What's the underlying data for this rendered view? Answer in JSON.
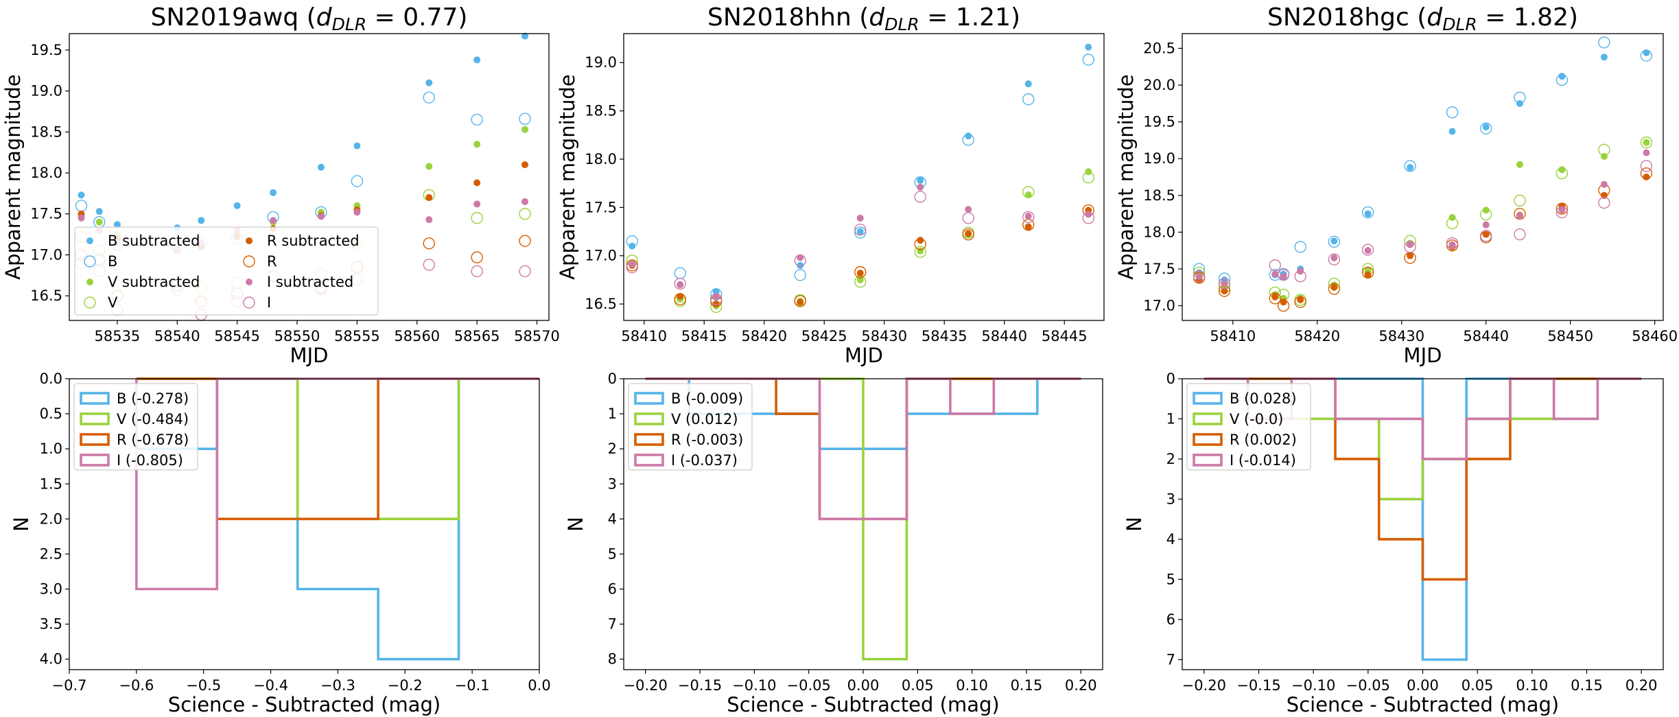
{
  "colors": {
    "B": "#56b4e9",
    "V": "#99d33c",
    "R": "#d55e00",
    "I": "#cc79a7"
  },
  "chart_data": [
    {
      "type": "scatter",
      "title_main": "SN2019awq",
      "title_dlr": "0.77",
      "xlabel": "MJD",
      "ylabel": "Apparent magnitude",
      "xlim": [
        58531,
        58571
      ],
      "ylim": [
        19.7,
        16.2
      ],
      "y_inverted": true,
      "xticks": [
        58535,
        58540,
        58545,
        58550,
        58555,
        58560,
        58565,
        58570
      ],
      "yticks": [
        16.5,
        17.0,
        17.5,
        18.0,
        18.5,
        19.0,
        19.5
      ],
      "legend_loc": "lower-left",
      "legend": [
        {
          "label": "B subtracted",
          "band": "B",
          "kind": "sub"
        },
        {
          "label": "R subtracted",
          "band": "R",
          "kind": "sub"
        },
        {
          "label": "B",
          "band": "B",
          "kind": "sci"
        },
        {
          "label": "R",
          "band": "R",
          "kind": "sci"
        },
        {
          "label": "V subtracted",
          "band": "V",
          "kind": "sub"
        },
        {
          "label": "I subtracted",
          "band": "I",
          "kind": "sub"
        },
        {
          "label": "V",
          "band": "V",
          "kind": "sci"
        },
        {
          "label": "I",
          "band": "I",
          "kind": "sci"
        }
      ],
      "x": [
        58532,
        58533.5,
        58535,
        58540,
        58542,
        58545,
        58548,
        58552,
        58555,
        58561,
        58565,
        58569
      ],
      "series": [
        {
          "band": "B",
          "kind": "sub",
          "values": [
            17.73,
            17.53,
            17.37,
            17.33,
            17.42,
            17.6,
            17.76,
            18.07,
            18.33,
            19.1,
            19.38,
            19.67
          ]
        },
        {
          "band": "B",
          "kind": "sci",
          "values": [
            17.6,
            17.4,
            17.12,
            17.1,
            17.15,
            17.2,
            17.46,
            17.52,
            17.9,
            18.92,
            18.65,
            18.66
          ]
        },
        {
          "band": "V",
          "kind": "sub",
          "values": [
            17.47,
            17.4,
            17.25,
            17.08,
            17.13,
            17.25,
            17.4,
            17.52,
            17.6,
            18.08,
            18.35,
            18.53
          ]
        },
        {
          "band": "V",
          "kind": "sci",
          "values": [
            17.22,
            17.05,
            16.62,
            16.7,
            16.6,
            16.66,
            16.92,
            16.77,
            17.12,
            17.73,
            17.45,
            17.5
          ]
        },
        {
          "band": "R",
          "kind": "sub",
          "values": [
            17.5,
            17.3,
            17.2,
            17.05,
            17.1,
            17.22,
            17.32,
            17.48,
            17.55,
            17.7,
            17.88,
            18.1
          ]
        },
        {
          "band": "R",
          "kind": "sci",
          "values": [
            17.0,
            16.94,
            16.5,
            16.63,
            16.43,
            16.53,
            16.74,
            16.58,
            16.85,
            17.14,
            16.97,
            17.17
          ]
        },
        {
          "band": "I",
          "kind": "sub",
          "values": [
            17.45,
            17.3,
            17.15,
            17.05,
            17.15,
            17.3,
            17.42,
            17.47,
            17.52,
            17.43,
            17.62,
            17.65
          ]
        },
        {
          "band": "I",
          "kind": "sci",
          "values": [
            16.9,
            16.8,
            16.33,
            16.57,
            16.27,
            16.43,
            16.74,
            16.6,
            16.7,
            16.88,
            16.8,
            16.8
          ]
        }
      ]
    },
    {
      "type": "scatter",
      "title_main": "SN2018hhn",
      "title_dlr": "1.21",
      "xlabel": "MJD",
      "ylabel": "Apparent magnitude",
      "xlim": [
        58408.3,
        58448.3
      ],
      "ylim": [
        19.3,
        16.33
      ],
      "y_inverted": true,
      "xticks": [
        58410,
        58415,
        58420,
        58425,
        58430,
        58435,
        58440,
        58445
      ],
      "yticks": [
        16.5,
        17.0,
        17.5,
        18.0,
        18.5,
        19.0
      ],
      "x": [
        58409,
        58413,
        58416,
        58423,
        58428,
        58433,
        58437,
        58442,
        58447
      ],
      "series": [
        {
          "band": "B",
          "kind": "sub",
          "values": [
            17.1,
            16.7,
            16.63,
            16.9,
            17.25,
            17.78,
            18.24,
            18.78,
            19.16
          ]
        },
        {
          "band": "B",
          "kind": "sci",
          "values": [
            17.15,
            16.82,
            16.6,
            16.8,
            17.24,
            17.76,
            18.2,
            18.62,
            19.03
          ]
        },
        {
          "band": "V",
          "kind": "sub",
          "values": [
            16.92,
            16.55,
            16.48,
            16.53,
            16.75,
            17.05,
            17.22,
            17.63,
            17.87
          ]
        },
        {
          "band": "V",
          "kind": "sci",
          "values": [
            16.95,
            16.53,
            16.47,
            16.54,
            16.73,
            17.04,
            17.24,
            17.66,
            17.81
          ]
        },
        {
          "band": "R",
          "kind": "sub",
          "values": [
            16.9,
            16.58,
            16.5,
            16.52,
            16.82,
            17.16,
            17.23,
            17.3,
            17.47
          ]
        },
        {
          "band": "R",
          "kind": "sci",
          "values": [
            16.9,
            16.55,
            16.53,
            16.53,
            16.83,
            17.12,
            17.22,
            17.32,
            17.47
          ]
        },
        {
          "band": "I",
          "kind": "sub",
          "values": [
            16.91,
            16.7,
            16.57,
            16.98,
            17.39,
            17.71,
            17.48,
            17.41,
            17.43
          ]
        },
        {
          "band": "I",
          "kind": "sci",
          "values": [
            16.88,
            16.71,
            16.55,
            16.95,
            17.27,
            17.61,
            17.39,
            17.4,
            17.39
          ]
        }
      ]
    },
    {
      "type": "scatter",
      "title_main": "SN2018hgc",
      "title_dlr": "1.82",
      "xlabel": "MJD",
      "ylabel": "Apparent magnitude",
      "xlim": [
        58404,
        58461
      ],
      "ylim": [
        20.7,
        16.8
      ],
      "y_inverted": true,
      "xticks": [
        58410,
        58420,
        58430,
        58440,
        58450,
        58460
      ],
      "yticks": [
        17.0,
        17.5,
        18.0,
        18.5,
        19.0,
        19.5,
        20.0,
        20.5
      ],
      "x": [
        58406,
        58409,
        58415,
        58416,
        58418,
        58422,
        58426,
        58431,
        58436,
        58440,
        58444,
        58449,
        58454,
        58459
      ],
      "series": [
        {
          "band": "B",
          "kind": "sub",
          "values": [
            17.45,
            17.35,
            17.42,
            17.43,
            17.5,
            17.88,
            18.25,
            18.88,
            19.37,
            19.43,
            19.75,
            20.12,
            20.38,
            20.44
          ]
        },
        {
          "band": "B",
          "kind": "sci",
          "values": [
            17.5,
            17.37,
            17.42,
            17.43,
            17.8,
            17.87,
            18.27,
            18.9,
            19.63,
            19.41,
            19.83,
            20.07,
            20.58,
            20.4
          ]
        },
        {
          "band": "V",
          "kind": "sub",
          "values": [
            17.42,
            17.25,
            17.15,
            17.1,
            17.1,
            17.28,
            17.48,
            17.85,
            18.2,
            18.3,
            18.92,
            18.85,
            19.03,
            19.22
          ]
        },
        {
          "band": "V",
          "kind": "sci",
          "values": [
            17.45,
            17.25,
            17.18,
            17.15,
            17.08,
            17.3,
            17.5,
            17.88,
            18.12,
            18.24,
            18.43,
            18.8,
            19.12,
            19.22
          ]
        },
        {
          "band": "R",
          "kind": "sub",
          "values": [
            17.35,
            17.2,
            17.12,
            17.05,
            17.08,
            17.25,
            17.42,
            17.68,
            17.8,
            17.97,
            18.23,
            18.35,
            18.5,
            18.75
          ]
        },
        {
          "band": "R",
          "kind": "sci",
          "values": [
            17.38,
            17.2,
            17.1,
            17.0,
            17.05,
            17.23,
            17.45,
            17.65,
            17.82,
            17.93,
            18.25,
            18.32,
            18.57,
            18.8
          ]
        },
        {
          "band": "I",
          "kind": "sub",
          "values": [
            17.4,
            17.3,
            17.43,
            17.4,
            17.47,
            17.65,
            17.75,
            17.83,
            17.83,
            18.1,
            18.22,
            18.3,
            18.65,
            19.08
          ]
        },
        {
          "band": "I",
          "kind": "sci",
          "values": [
            17.4,
            17.3,
            17.55,
            17.42,
            17.4,
            17.63,
            17.76,
            17.8,
            17.85,
            17.95,
            17.97,
            18.27,
            18.4,
            18.9
          ]
        }
      ]
    },
    {
      "type": "histogram",
      "xlabel": "Science -  Subtracted (mag)",
      "ylabel": "N",
      "xlim": [
        -0.7,
        0.0
      ],
      "ylim": [
        0,
        4.15
      ],
      "xticks": [
        -0.7,
        -0.6,
        -0.5,
        -0.4,
        -0.3,
        -0.2,
        -0.1,
        0.0
      ],
      "xtick_labels": [
        "−0.7",
        "−0.6",
        "−0.5",
        "−0.4",
        "−0.3",
        "−0.2",
        "−0.1",
        "0.0"
      ],
      "yticks": [
        0.0,
        0.5,
        1.0,
        1.5,
        2.0,
        2.5,
        3.0,
        3.5,
        4.0
      ],
      "ytick_labels": [
        "0.0",
        "0.5",
        "1.0",
        "1.5",
        "2.0",
        "2.5",
        "3.0",
        "3.5",
        "4.0"
      ],
      "legend_loc": "upper-left",
      "series": [
        {
          "band": "B",
          "label": "B (-0.278)",
          "edges": [
            -0.6,
            -0.48,
            -0.36,
            -0.24,
            -0.12,
            0.0
          ],
          "counts": [
            1,
            0,
            3,
            4,
            0
          ]
        },
        {
          "band": "V",
          "label": "V (-0.484)",
          "edges": [
            -0.6,
            -0.48,
            -0.36,
            -0.24,
            -0.12,
            0.0
          ],
          "counts": [
            0,
            0,
            2,
            2,
            0
          ]
        },
        {
          "band": "R",
          "label": "R (-0.678)",
          "edges": [
            -0.6,
            -0.48,
            -0.36,
            -0.24,
            -0.12,
            0.0
          ],
          "counts": [
            0,
            2,
            2,
            0,
            0
          ]
        },
        {
          "band": "I",
          "label": "I (-0.805)",
          "edges": [
            -0.6,
            -0.48,
            -0.36,
            -0.24,
            -0.12,
            0.0
          ],
          "counts": [
            3,
            0,
            0,
            0,
            0
          ]
        }
      ]
    },
    {
      "type": "histogram",
      "xlabel": "Science -  Subtracted (mag)",
      "ylabel": "N",
      "xlim": [
        -0.22,
        0.22
      ],
      "ylim": [
        0,
        8.3
      ],
      "xticks": [
        -0.2,
        -0.15,
        -0.1,
        -0.05,
        0.0,
        0.05,
        0.1,
        0.15,
        0.2
      ],
      "xtick_labels": [
        "−0.20",
        "−0.15",
        "−0.10",
        "−0.05",
        "0.00",
        "0.05",
        "0.10",
        "0.15",
        "0.20"
      ],
      "yticks": [
        0,
        1,
        2,
        3,
        4,
        5,
        6,
        7,
        8
      ],
      "ytick_labels": [
        "0",
        "1",
        "2",
        "3",
        "4",
        "5",
        "6",
        "7",
        "8"
      ],
      "legend_loc": "upper-left",
      "series": [
        {
          "band": "B",
          "label": "B (-0.009)",
          "edges": [
            -0.2,
            -0.16,
            -0.12,
            -0.08,
            -0.04,
            0.0,
            0.04,
            0.08,
            0.12,
            0.16,
            0.2
          ],
          "counts": [
            0,
            1,
            1,
            1,
            2,
            2,
            1,
            1,
            1,
            0
          ]
        },
        {
          "band": "V",
          "label": "V (0.012)",
          "edges": [
            -0.2,
            -0.16,
            -0.12,
            -0.08,
            -0.04,
            0.0,
            0.04,
            0.08,
            0.12,
            0.16,
            0.2
          ],
          "counts": [
            0,
            0,
            0,
            0,
            0,
            8,
            0,
            0,
            0,
            0
          ]
        },
        {
          "band": "R",
          "label": "R (-0.003)",
          "edges": [
            -0.2,
            -0.16,
            -0.12,
            -0.08,
            -0.04,
            0.0,
            0.04,
            0.08,
            0.12,
            0.16,
            0.2
          ],
          "counts": [
            0,
            0,
            0,
            1,
            4,
            4,
            0,
            0,
            0,
            0
          ]
        },
        {
          "band": "I",
          "label": "I (-0.037)",
          "edges": [
            -0.2,
            -0.16,
            -0.12,
            -0.08,
            -0.04,
            0.0,
            0.04,
            0.08,
            0.12,
            0.16,
            0.2
          ],
          "counts": [
            0,
            0,
            0,
            0,
            4,
            4,
            0,
            1,
            0,
            0
          ]
        }
      ]
    },
    {
      "type": "histogram",
      "xlabel": "Science -  Subtracted (mag)",
      "ylabel": "N",
      "xlim": [
        -0.22,
        0.22
      ],
      "ylim": [
        0,
        7.25
      ],
      "xticks": [
        -0.2,
        -0.15,
        -0.1,
        -0.05,
        0.0,
        0.05,
        0.1,
        0.15,
        0.2
      ],
      "xtick_labels": [
        "−0.20",
        "−0.15",
        "−0.10",
        "−0.05",
        "0.00",
        "0.05",
        "0.10",
        "0.15",
        "0.20"
      ],
      "yticks": [
        0,
        1,
        2,
        3,
        4,
        5,
        6,
        7
      ],
      "ytick_labels": [
        "0",
        "1",
        "2",
        "3",
        "4",
        "5",
        "6",
        "7"
      ],
      "legend_loc": "upper-left",
      "series": [
        {
          "band": "B",
          "label": "B (0.028)",
          "edges": [
            -0.2,
            -0.16,
            -0.12,
            -0.08,
            -0.04,
            0.0,
            0.04,
            0.08,
            0.12,
            0.16,
            0.2
          ],
          "counts": [
            0,
            0,
            0,
            0,
            0,
            7,
            0,
            0,
            0,
            0
          ]
        },
        {
          "band": "V",
          "label": "V (-0.0)",
          "edges": [
            -0.2,
            -0.16,
            -0.12,
            -0.08,
            -0.04,
            0.0,
            0.04,
            0.08,
            0.12,
            0.16,
            0.2
          ],
          "counts": [
            0,
            1,
            1,
            1,
            3,
            2,
            1,
            1,
            0,
            0
          ]
        },
        {
          "band": "R",
          "label": "R (0.002)",
          "edges": [
            -0.2,
            -0.16,
            -0.12,
            -0.08,
            -0.04,
            0.0,
            0.04,
            0.08,
            0.12,
            0.16,
            0.2
          ],
          "counts": [
            0,
            0,
            0,
            2,
            4,
            5,
            2,
            0,
            0,
            0
          ]
        },
        {
          "band": "I",
          "label": "I (-0.014)",
          "edges": [
            -0.2,
            -0.16,
            -0.12,
            -0.08,
            -0.04,
            0.0,
            0.04,
            0.08,
            0.12,
            0.16,
            0.2
          ],
          "counts": [
            0,
            1,
            0,
            1,
            1,
            2,
            1,
            0,
            1,
            0
          ]
        }
      ]
    }
  ]
}
